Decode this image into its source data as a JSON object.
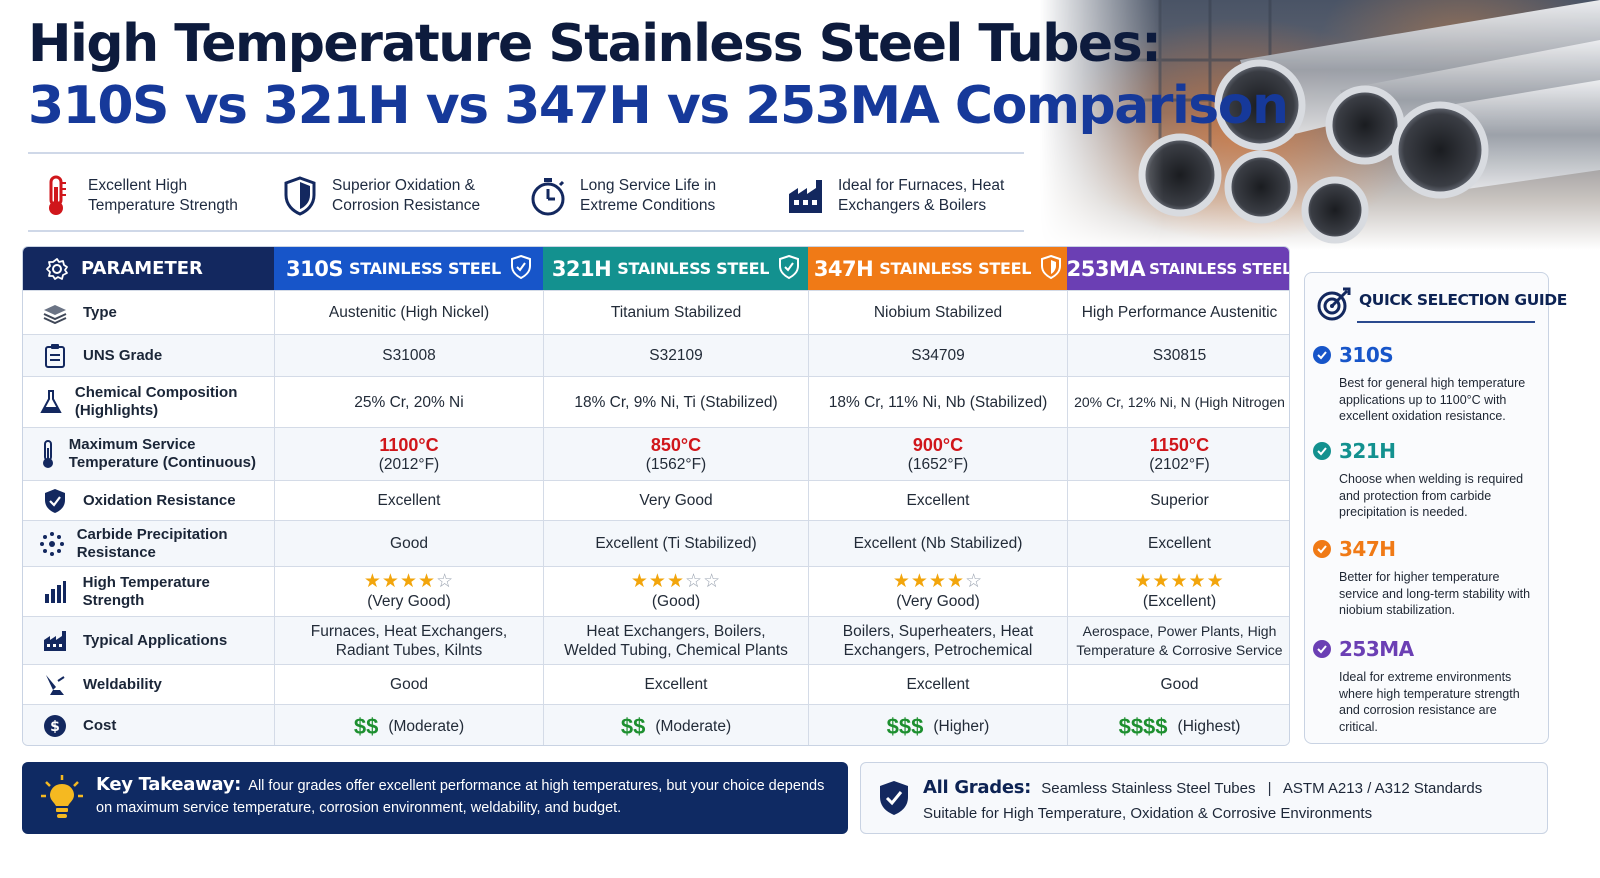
{
  "title": {
    "line1": "High Temperature Stainless Steel Tubes:",
    "line2": "310S vs 321H vs 347H vs 253MA Comparison"
  },
  "features": [
    {
      "icon": "thermometer-icon",
      "text": "Excellent High Temperature Strength"
    },
    {
      "icon": "shield-icon",
      "text": "Superior Oxidation & Corrosion Resistance"
    },
    {
      "icon": "stopwatch-icon",
      "text": "Long Service Life in Extreme Conditions"
    },
    {
      "icon": "factory-icon",
      "text": "Ideal for Furnaces, Heat Exchangers & Boilers"
    }
  ],
  "colors": {
    "header_param": "#13285f",
    "header_310s": "#1755c9",
    "header_321h": "#13918f",
    "header_347h": "#f07a16",
    "header_253ma": "#6b3fb4",
    "temp_red": "#d0161b",
    "star_gold": "#f2a50c",
    "dollar_green": "#1d8f2f"
  },
  "table": {
    "header": {
      "param_label": "PARAMETER",
      "cols": [
        {
          "grade": "310S",
          "suffix": "STAINLESS STEEL"
        },
        {
          "grade": "321H",
          "suffix": "STAINLESS STEEL"
        },
        {
          "grade": "347H",
          "suffix": "STAINLESS STEEL"
        },
        {
          "grade": "253MA",
          "suffix": "STAINLESS STEEL"
        }
      ]
    },
    "rows": {
      "type": {
        "label": "Type",
        "icon": "layers-icon",
        "values": [
          "Austenitic (High Nickel)",
          "Titanium Stabilized",
          "Niobium Stabilized",
          "High Performance Austenitic"
        ]
      },
      "uns": {
        "label": "UNS Grade",
        "icon": "clipboard-icon",
        "values": [
          "S31008",
          "S32109",
          "S34709",
          "S30815"
        ]
      },
      "chem": {
        "label": "Chemical Composition (Highlights)",
        "icon": "flask-icon",
        "values": [
          "25% Cr, 20% Ni",
          "18% Cr, 9% Ni, Ti (Stabilized)",
          "18% Cr, 11% Ni, Nb (Stabilized)",
          "20% Cr, 12% Ni, N (High Nitrogen"
        ]
      },
      "maxtemp": {
        "label": "Maximum Service Temperature (Continuous)",
        "icon": "thermometer-icon",
        "values": [
          {
            "c": "1100°C",
            "f": "(2012°F)"
          },
          {
            "c": "850°C",
            "f": "(1562°F)"
          },
          {
            "c": "900°C",
            "f": "(1652°F)"
          },
          {
            "c": "1150°C",
            "f": "(2102°F)"
          }
        ]
      },
      "oxidation": {
        "label": "Oxidation Resistance",
        "icon": "shield-check-icon",
        "values": [
          "Excellent",
          "Very Good",
          "Excellent",
          "Superior"
        ]
      },
      "carbide": {
        "label": "Carbide Precipitation Resistance",
        "icon": "molecule-icon",
        "values": [
          "Good",
          "Excellent (Ti Stabilized)",
          "Excellent (Nb Stabilized)",
          "Excellent"
        ]
      },
      "strength": {
        "label": "High Temperature Strength",
        "icon": "bar-chart-icon",
        "values": [
          {
            "rating": 4,
            "max": 5,
            "text": "(Very Good)"
          },
          {
            "rating": 3,
            "max": 5,
            "text": "(Good)"
          },
          {
            "rating": 4,
            "max": 5,
            "text": "(Very Good)"
          },
          {
            "rating": 5,
            "max": 5,
            "text": "(Excellent)"
          }
        ]
      },
      "applications": {
        "label": "Typical Applications",
        "icon": "factory-icon",
        "values": [
          [
            "Furnaces, Heat Exchangers,",
            "Radiant Tubes, Kilnts"
          ],
          [
            "Heat Exchangers, Boilers,",
            "Welded Tubing, Chemical Plants"
          ],
          [
            "Boilers, Superheaters, Heat",
            "Exchangers, Petrochemical"
          ],
          [
            "Aerospace, Power Plants, High",
            "Temperature & Corrosive Service"
          ]
        ]
      },
      "weldability": {
        "label": "Weldability",
        "icon": "welding-torch-icon",
        "values": [
          "Good",
          "Excellent",
          "Excellent",
          "Good"
        ]
      },
      "cost": {
        "label": "Cost",
        "icon": "dollar-coin-icon",
        "values": [
          {
            "symbols": "$$",
            "text": "(Moderate)"
          },
          {
            "symbols": "$$",
            "text": "(Moderate)"
          },
          {
            "symbols": "$$$",
            "text": "(Higher)"
          },
          {
            "symbols": "$$$$",
            "text": "(Highest)"
          }
        ]
      }
    }
  },
  "guide": {
    "title": "QUICK SELECTION GUIDE",
    "items": [
      {
        "grade": "310S",
        "color": "#1755c9",
        "desc": "Best for general high temperature applications up to 1100°C with excellent oxidation resistance."
      },
      {
        "grade": "321H",
        "color": "#13918f",
        "desc": "Choose when welding is required and protection from carbide precipitation is needed."
      },
      {
        "grade": "347H",
        "color": "#f07a16",
        "desc": "Better for higher temperature service and long-term stability with niobium stabilization."
      },
      {
        "grade": "253MA",
        "color": "#6b3fb4",
        "desc": "Ideal for extreme environments where high temperature strength and corrosion resistance are critical."
      }
    ]
  },
  "takeaway": {
    "label": "Key Takeaway:",
    "text": "All four grades offer excellent performance at high temperatures, but your choice depends on maximum service temperature, corrosion environment, weldability, and budget."
  },
  "all_grades": {
    "label": "All Grades:",
    "part1": "Seamless Stainless Steel Tubes",
    "separator": "|",
    "part2": "ASTM A213 / A312 Standards",
    "line2": "Suitable for High Temperature, Oxidation & Corrosive Environments"
  }
}
